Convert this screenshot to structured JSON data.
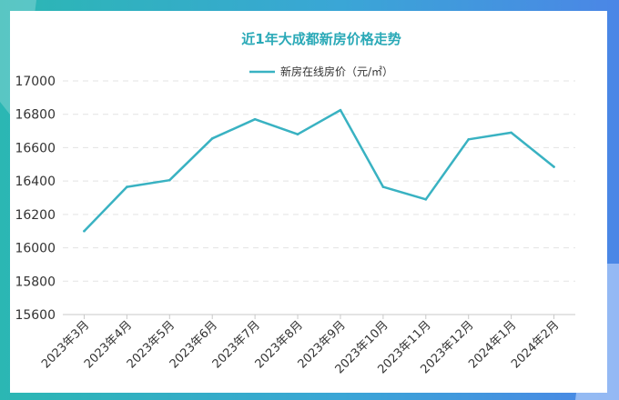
{
  "chart_data": {
    "type": "line",
    "title": "近1年大成都新房价格走势",
    "categories": [
      "2023年3月",
      "2023年4月",
      "2023年5月",
      "2023年6月",
      "2023年7月",
      "2023年8月",
      "2023年9月",
      "2023年10月",
      "2023年11月",
      "2023年12月",
      "2024年1月",
      "2024年2月"
    ],
    "series": [
      {
        "name": "新房在线房价（元/㎡）",
        "values": [
          16100,
          16365,
          16405,
          16655,
          16770,
          16680,
          16825,
          16365,
          16290,
          16650,
          16690,
          16485
        ]
      }
    ],
    "yticks": [
      15600,
      15800,
      16000,
      16200,
      16400,
      16600,
      16800,
      17000
    ],
    "ylim": [
      15600,
      17000
    ],
    "xlabel": "",
    "ylabel": "",
    "grid": true,
    "legend_position": "top-center",
    "line_color": "#39b2c2"
  }
}
